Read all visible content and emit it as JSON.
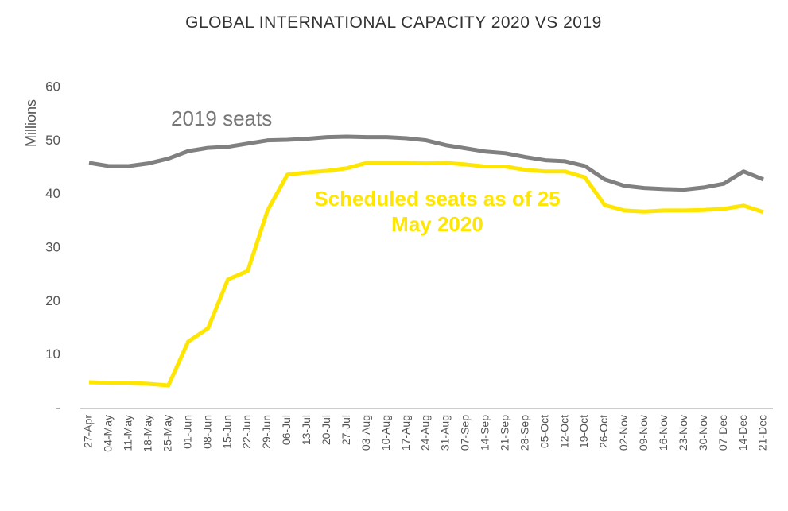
{
  "chart_data": {
    "type": "line",
    "title": "GLOBAL INTERNATIONAL CAPACITY 2020 VS 2019",
    "y_label": "Millions",
    "categories": [
      "27-Apr",
      "04-May",
      "11-May",
      "18-May",
      "25-May",
      "01-Jun",
      "08-Jun",
      "15-Jun",
      "22-Jun",
      "29-Jun",
      "06-Jul",
      "13-Jul",
      "20-Jul",
      "27-Jul",
      "03-Aug",
      "10-Aug",
      "17-Aug",
      "24-Aug",
      "31-Aug",
      "07-Sep",
      "14-Sep",
      "21-Sep",
      "28-Sep",
      "05-Oct",
      "12-Oct",
      "19-Oct",
      "26-Oct",
      "02-Nov",
      "09-Nov",
      "16-Nov",
      "23-Nov",
      "30-Nov",
      "07-Dec",
      "14-Dec",
      "21-Dec"
    ],
    "series": [
      {
        "name": "2019 seats",
        "color": "#808080",
        "values": [
          45.9,
          45.3,
          45.3,
          45.8,
          46.7,
          48.1,
          48.7,
          48.9,
          49.5,
          50.1,
          50.2,
          50.4,
          50.7,
          50.8,
          50.7,
          50.7,
          50.5,
          50.1,
          49.2,
          48.6,
          48.0,
          47.7,
          47.0,
          46.4,
          46.2,
          45.3,
          42.8,
          41.6,
          41.2,
          41.0,
          40.9,
          41.3,
          42.0,
          44.3,
          42.8
        ]
      },
      {
        "name": "Scheduled seats as of 25 May 2020",
        "color": "#ffe600",
        "values": [
          4.9,
          4.8,
          4.8,
          4.6,
          4.3,
          12.5,
          15.0,
          24.1,
          25.7,
          37.0,
          43.7,
          44.1,
          44.4,
          44.9,
          45.9,
          45.9,
          45.9,
          45.8,
          45.9,
          45.6,
          45.2,
          45.2,
          44.6,
          44.3,
          44.3,
          43.2,
          38.0,
          37.0,
          36.8,
          37.0,
          37.0,
          37.1,
          37.3,
          37.9,
          36.7
        ]
      }
    ],
    "ylim": [
      0,
      60
    ],
    "yticks": [
      {
        "value": 0,
        "label": "-"
      },
      10,
      20,
      30,
      40,
      50,
      60
    ],
    "grid": false
  }
}
